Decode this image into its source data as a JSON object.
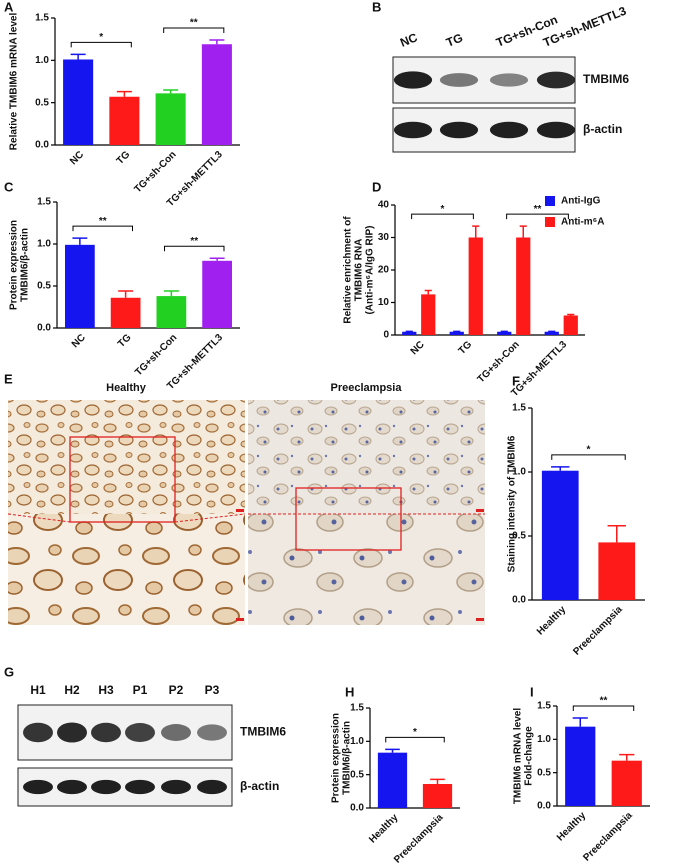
{
  "chart_data": [
    {
      "type": "bar",
      "panel": "A",
      "ylabel": [
        "Relative TMBIM6 mRNA level"
      ],
      "categories": [
        "NC",
        "TG",
        "TG+sh-Con",
        "TG+sh-METTL3"
      ],
      "values": [
        1.01,
        0.57,
        0.61,
        1.19
      ],
      "errors": [
        0.06,
        0.06,
        0.04,
        0.05
      ],
      "colors": [
        "#1515f0",
        "#ff1a1a",
        "#22d022",
        "#a020f0"
      ],
      "ylim": [
        0,
        1.5
      ],
      "yticks": [
        {
          "value": 0,
          "label": "0.0"
        },
        {
          "value": 0.5,
          "label": "0.5"
        },
        {
          "value": 1,
          "label": "1.0"
        },
        {
          "value": 1.5,
          "label": "1.5"
        }
      ],
      "significance": [
        {
          "between": [
            "NC",
            "TG"
          ],
          "label": "*"
        },
        {
          "between": [
            "TG+sh-Con",
            "TG+sh-METTL3"
          ],
          "label": "**"
        }
      ]
    },
    {
      "type": "bar",
      "panel": "C",
      "ylabel": [
        "Protein expression",
        "TMBIM6/β-actin"
      ],
      "categories": [
        "NC",
        "TG",
        "TG+sh-Con",
        "TG+sh-METTL3"
      ],
      "values": [
        0.99,
        0.36,
        0.38,
        0.8
      ],
      "errors": [
        0.08,
        0.08,
        0.06,
        0.03
      ],
      "colors": [
        "#1515f0",
        "#ff1a1a",
        "#22d022",
        "#a020f0"
      ],
      "ylim": [
        0,
        1.5
      ],
      "yticks": [
        {
          "value": 0,
          "label": "0.0"
        },
        {
          "value": 0.5,
          "label": "0.5"
        },
        {
          "value": 1,
          "label": "1.0"
        },
        {
          "value": 1.5,
          "label": "1.5"
        }
      ],
      "significance": [
        {
          "between": [
            "NC",
            "TG"
          ],
          "label": "**"
        },
        {
          "between": [
            "TG+sh-Con",
            "TG+sh-METTL3"
          ],
          "label": "**"
        }
      ]
    },
    {
      "type": "grouped-bar",
      "panel": "D",
      "ylabel": [
        "Relative enrichment of",
        "TMBIM6 RNA",
        "(Anti-m⁶A/IgG RIP)"
      ],
      "categories": [
        "NC",
        "TG",
        "TG+sh-Con",
        "TG+sh-METTL3"
      ],
      "series": [
        {
          "name": "Anti-IgG",
          "color": "#1515f0",
          "values": [
            1,
            1,
            1,
            1
          ],
          "errors": [
            0.1,
            0.1,
            0.1,
            0.1
          ]
        },
        {
          "name": "Anti-m⁶A",
          "color": "#ff1a1a",
          "values": [
            12.5,
            30,
            30,
            6
          ],
          "errors": [
            1.2,
            3.5,
            3.5,
            0.3
          ]
        }
      ],
      "ylim": [
        0,
        40
      ],
      "yticks": [
        0,
        10,
        20,
        30,
        40
      ],
      "significance": [
        {
          "between": [
            "NC",
            "TG"
          ],
          "label": "*"
        },
        {
          "between": [
            "TG+sh-Con",
            "TG+sh-METTL3"
          ],
          "label": "**"
        }
      ]
    },
    {
      "type": "bar",
      "panel": "F",
      "ylabel": [
        "Staining intensity of TMBIM6"
      ],
      "categories": [
        "Healthy",
        "Preeclampsia"
      ],
      "values": [
        1.01,
        0.45
      ],
      "errors": [
        0.03,
        0.13
      ],
      "colors": [
        "#1515f0",
        "#ff1a1a"
      ],
      "ylim": [
        0,
        1.5
      ],
      "yticks": [
        {
          "value": 0,
          "label": "0.0"
        },
        {
          "value": 0.5,
          "label": "0.5"
        },
        {
          "value": 1,
          "label": "1.0"
        },
        {
          "value": 1.5,
          "label": "1.5"
        }
      ],
      "significance": [
        {
          "between": [
            "Healthy",
            "Preeclampsia"
          ],
          "label": "*"
        }
      ]
    },
    {
      "type": "bar",
      "panel": "H",
      "ylabel": [
        "Protein expression",
        "TMBIM6/β-actin"
      ],
      "categories": [
        "Healthy",
        "Preeclampsia"
      ],
      "values": [
        0.83,
        0.36
      ],
      "errors": [
        0.05,
        0.07
      ],
      "colors": [
        "#1515f0",
        "#ff1a1a"
      ],
      "ylim": [
        0,
        1.5
      ],
      "yticks": [
        {
          "value": 0,
          "label": "0.0"
        },
        {
          "value": 0.5,
          "label": "0.5"
        },
        {
          "value": 1,
          "label": "1.0"
        },
        {
          "value": 1.5,
          "label": "1.5"
        }
      ],
      "significance": [
        {
          "between": [
            "Healthy",
            "Preeclampsia"
          ],
          "label": "*"
        }
      ]
    },
    {
      "type": "bar",
      "panel": "I",
      "ylabel": [
        "TMBIM6 mRNA level",
        "Fold-change"
      ],
      "categories": [
        "Healthy",
        "Preeclampsia"
      ],
      "values": [
        1.19,
        0.68
      ],
      "errors": [
        0.13,
        0.09
      ],
      "colors": [
        "#1515f0",
        "#ff1a1a"
      ],
      "ylim": [
        0,
        1.5
      ],
      "yticks": [
        {
          "value": 0,
          "label": "0.0"
        },
        {
          "value": 0.5,
          "label": "0.5"
        },
        {
          "value": 1,
          "label": "1.0"
        },
        {
          "value": 1.5,
          "label": "1.5"
        }
      ],
      "significance": [
        {
          "between": [
            "Healthy",
            "Preeclampsia"
          ],
          "label": "**"
        }
      ]
    }
  ],
  "blots": [
    {
      "panel": "B",
      "lanes": [
        "NC",
        "TG",
        "TG+sh-Con",
        "TG+sh-METTL3"
      ],
      "rows": [
        "TMBIM6",
        "β-actin"
      ]
    },
    {
      "panel": "G",
      "lanes": [
        "H1",
        "H2",
        "H3",
        "P1",
        "P2",
        "P3"
      ],
      "rows": [
        "TMBIM6",
        "β-actin"
      ]
    }
  ],
  "images": {
    "panel": "E",
    "labels": [
      "Healthy",
      "Preeclampsia"
    ]
  }
}
